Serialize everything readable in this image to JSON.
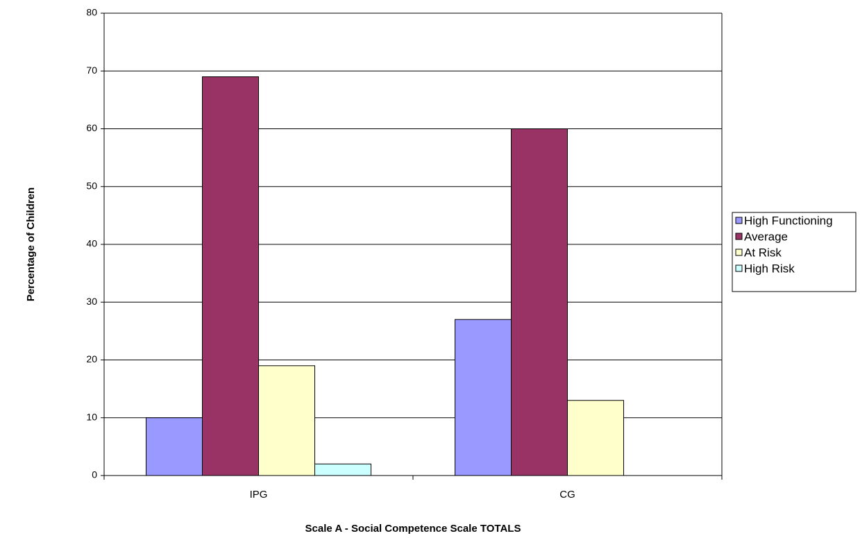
{
  "chart_data": {
    "type": "bar",
    "x_label": "Scale A - Social Competence Scale TOTALS",
    "y_label": "Percentage of Children",
    "categories": [
      "IPG",
      "CG"
    ],
    "series": [
      {
        "name": "High Functioning",
        "color": "#9999ff",
        "values": [
          10,
          27
        ]
      },
      {
        "name": "Average",
        "color": "#993366",
        "values": [
          69,
          60
        ]
      },
      {
        "name": "At Risk",
        "color": "#ffffcc",
        "values": [
          19,
          13
        ]
      },
      {
        "name": "High Risk",
        "color": "#ccffff",
        "values": [
          2,
          0
        ]
      }
    ],
    "ylim": [
      0,
      80
    ],
    "yticks": [
      0,
      10,
      20,
      30,
      40,
      50,
      60,
      70,
      80
    ],
    "grid": true,
    "legend": "right"
  }
}
